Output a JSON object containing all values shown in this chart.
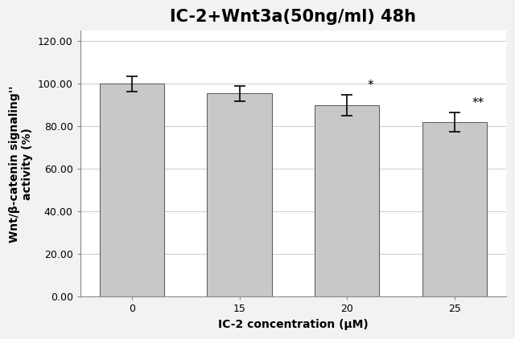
{
  "title": "IC-2+Wnt3a(50ng/ml) 48h",
  "categories": [
    "0",
    "15",
    "20",
    "25"
  ],
  "values": [
    100.0,
    95.5,
    90.0,
    82.0
  ],
  "errors": [
    3.5,
    3.5,
    5.0,
    4.5
  ],
  "bar_color_top": "#c8c8c8",
  "bar_color_bottom": "#888888",
  "bar_edge_color": "#555555",
  "xlabel": "IC-2 concentration (μM)",
  "ylabel": "Wnt/β-catenin signaling''\nactivity (%)",
  "ylim": [
    0,
    125
  ],
  "yticks": [
    0.0,
    20.0,
    40.0,
    60.0,
    80.0,
    100.0,
    120.0
  ],
  "annotations": [
    "",
    "",
    "*",
    "**"
  ],
  "title_fontsize": 15,
  "label_fontsize": 10,
  "tick_fontsize": 9,
  "background_color": "#f2f2f2",
  "plot_bg_color": "#ffffff",
  "grid_color": "#d0d0d0"
}
